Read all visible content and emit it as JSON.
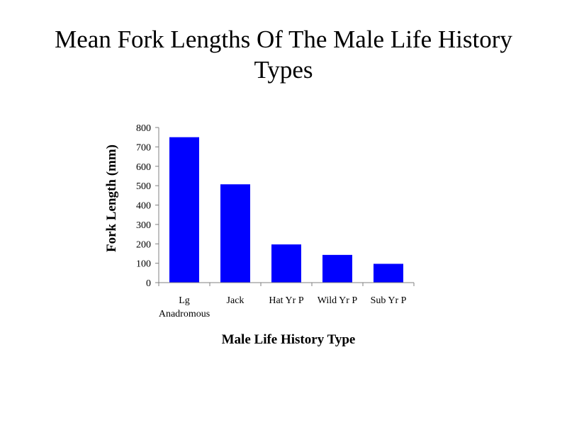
{
  "title_lines": [
    "Mean Fork Lengths Of The Male Life History",
    "Types"
  ],
  "chart_data": {
    "type": "bar",
    "title": "Mean Fork Lengths Of The Male Life History Types",
    "xlabel": "Male Life History Type",
    "ylabel": "Fork Length (mm)",
    "categories": [
      [
        "Lg",
        "Anadromous"
      ],
      [
        "Jack"
      ],
      [
        "Hat Yr P"
      ],
      [
        "Wild Yr P"
      ],
      [
        "Sub Yr P"
      ]
    ],
    "values": [
      750,
      507,
      197,
      143,
      97
    ],
    "ylim": [
      0,
      800
    ],
    "yticks": [
      0,
      100,
      200,
      300,
      400,
      500,
      600,
      700,
      800
    ],
    "grid": false,
    "legend": "none",
    "bar_color": "#0000FF"
  }
}
